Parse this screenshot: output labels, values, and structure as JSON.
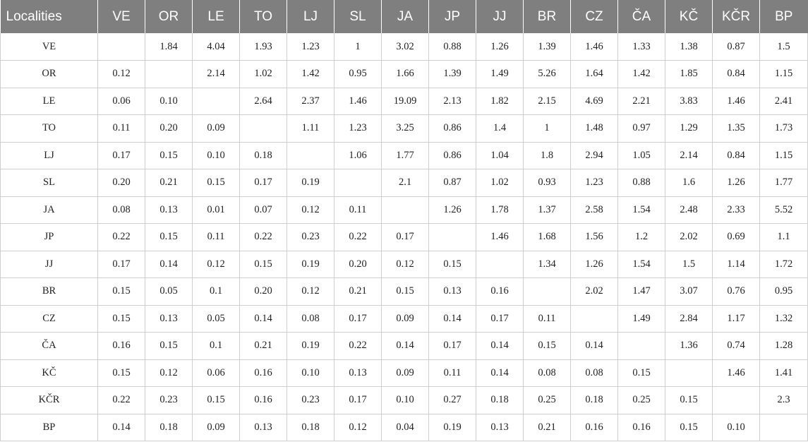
{
  "table": {
    "header": [
      "Localities",
      "VE",
      "OR",
      "LE",
      "TO",
      "LJ",
      "SL",
      "JA",
      "JP",
      "JJ",
      "BR",
      "CZ",
      "ČA",
      "KČ",
      "KČR",
      "BP"
    ],
    "rows": [
      [
        "VE",
        "",
        "1.84",
        "4.04",
        "1.93",
        "1.23",
        "1",
        "3.02",
        "0.88",
        "1.26",
        "1.39",
        "1.46",
        "1.33",
        "1.38",
        "0.87",
        "1.5"
      ],
      [
        "OR",
        "0.12",
        "",
        "2.14",
        "1.02",
        "1.42",
        "0.95",
        "1.66",
        "1.39",
        "1.49",
        "5.26",
        "1.64",
        "1.42",
        "1.85",
        "0.84",
        "1.15"
      ],
      [
        "LE",
        "0.06",
        "0.10",
        "",
        "2.64",
        "2.37",
        "1.46",
        "19.09",
        "2.13",
        "1.82",
        "2.15",
        "4.69",
        "2.21",
        "3.83",
        "1.46",
        "2.41"
      ],
      [
        "TO",
        "0.11",
        "0.20",
        "0.09",
        "",
        "1.11",
        "1.23",
        "3.25",
        "0.86",
        "1.4",
        "1",
        "1.48",
        "0.97",
        "1.29",
        "1.35",
        "1.73"
      ],
      [
        "LJ",
        "0.17",
        "0.15",
        "0.10",
        "0.18",
        "",
        "1.06",
        "1.77",
        "0.86",
        "1.04",
        "1.8",
        "2.94",
        "1.05",
        "2.14",
        "0.84",
        "1.15"
      ],
      [
        "SL",
        "0.20",
        "0.21",
        "0.15",
        "0.17",
        "0.19",
        "",
        "2.1",
        "0.87",
        "1.02",
        "0.93",
        "1.23",
        "0.88",
        "1.6",
        "1.26",
        "1.77"
      ],
      [
        "JA",
        "0.08",
        "0.13",
        "0.01",
        "0.07",
        "0.12",
        "0.11",
        "",
        "1.26",
        "1.78",
        "1.37",
        "2.58",
        "1.54",
        "2.48",
        "2.33",
        "5.52"
      ],
      [
        "JP",
        "0.22",
        "0.15",
        "0.11",
        "0.22",
        "0.23",
        "0.22",
        "0.17",
        "",
        "1.46",
        "1.68",
        "1.56",
        "1.2",
        "2.02",
        "0.69",
        "1.1"
      ],
      [
        "JJ",
        "0.17",
        "0.14",
        "0.12",
        "0.15",
        "0.19",
        "0.20",
        "0.12",
        "0.15",
        "",
        "1.34",
        "1.26",
        "1.54",
        "1.5",
        "1.14",
        "1.72"
      ],
      [
        "BR",
        "0.15",
        "0.05",
        "0.1",
        "0.20",
        "0.12",
        "0.21",
        "0.15",
        "0.13",
        "0.16",
        "",
        "2.02",
        "1.47",
        "3.07",
        "0.76",
        "0.95"
      ],
      [
        "CZ",
        "0.15",
        "0.13",
        "0.05",
        "0.14",
        "0.08",
        "0.17",
        "0.09",
        "0.14",
        "0.17",
        "0.11",
        "",
        "1.49",
        "2.84",
        "1.17",
        "1.32"
      ],
      [
        "ČA",
        "0.16",
        "0.15",
        "0.1",
        "0.21",
        "0.19",
        "0.22",
        "0.14",
        "0.17",
        "0.14",
        "0.15",
        "0.14",
        "",
        "1.36",
        "0.74",
        "1.28"
      ],
      [
        "KČ",
        "0.15",
        "0.12",
        "0.06",
        "0.16",
        "0.10",
        "0.13",
        "0.09",
        "0.11",
        "0.14",
        "0.08",
        "0.08",
        "0.15",
        "",
        "1.46",
        "1.41"
      ],
      [
        "KČR",
        "0.22",
        "0.23",
        "0.15",
        "0.16",
        "0.23",
        "0.17",
        "0.10",
        "0.27",
        "0.18",
        "0.25",
        "0.18",
        "0.25",
        "0.15",
        "",
        "2.3"
      ],
      [
        "BP",
        "0.14",
        "0.18",
        "0.09",
        "0.13",
        "0.18",
        "0.12",
        "0.04",
        "0.19",
        "0.13",
        "0.21",
        "0.16",
        "0.16",
        "0.15",
        "0.10",
        ""
      ]
    ]
  },
  "colors": {
    "header_bg": "#7f7f7f",
    "header_text": "#ffffff",
    "grid_line": "#cfcfcf",
    "cell_text": "#222222"
  }
}
